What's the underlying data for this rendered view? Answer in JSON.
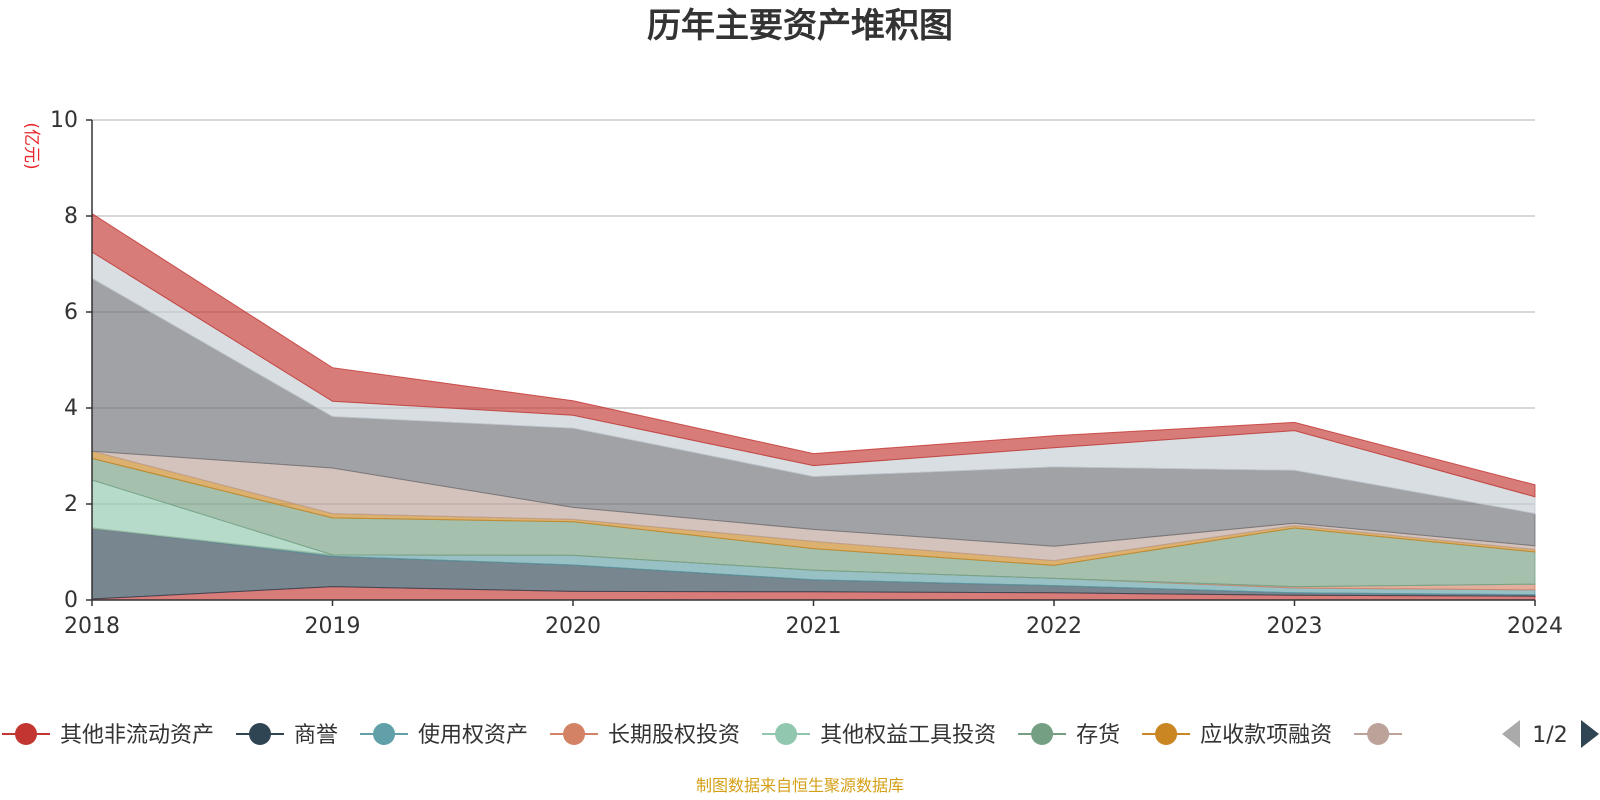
{
  "chart_data": {
    "type": "area",
    "stacked": true,
    "title": "历年主要资产堆积图",
    "unit_label": "(亿元)",
    "x": [
      "2018",
      "2019",
      "2020",
      "2021",
      "2022",
      "2023",
      "2024"
    ],
    "ylim": [
      0,
      10
    ],
    "yticks": [
      0,
      2,
      4,
      6,
      8,
      10
    ],
    "grid": true,
    "series": [
      {
        "name": "其他非流动资产",
        "color": "#c23531",
        "values": [
          0.02,
          0.28,
          0.18,
          0.17,
          0.15,
          0.1,
          0.08
        ],
        "in_legend": true
      },
      {
        "name": "商誉",
        "color": "#2f4554",
        "values": [
          1.48,
          0.63,
          0.55,
          0.25,
          0.15,
          0.05,
          0.03
        ],
        "in_legend": true
      },
      {
        "name": "使用权资产",
        "color": "#61a0a8",
        "values": [
          0.0,
          0.03,
          0.2,
          0.2,
          0.15,
          0.1,
          0.1
        ],
        "in_legend": true
      },
      {
        "name": "长期股权投资",
        "color": "#d48265",
        "values": [
          0.0,
          0.0,
          0.0,
          0.0,
          0.0,
          0.03,
          0.12
        ],
        "in_legend": true
      },
      {
        "name": "其他权益工具投资",
        "color": "#91c7ae",
        "values": [
          1.0,
          0.0,
          0.0,
          0.0,
          0.0,
          0.0,
          0.0
        ],
        "in_legend": true
      },
      {
        "name": "存货",
        "color": "#749f83",
        "values": [
          0.45,
          0.77,
          0.7,
          0.45,
          0.27,
          1.22,
          0.67
        ],
        "in_legend": true
      },
      {
        "name": "应收款项融资",
        "color": "#ca8622",
        "values": [
          0.15,
          0.09,
          0.05,
          0.15,
          0.1,
          0.05,
          0.05
        ],
        "in_legend": true
      },
      {
        "name": "",
        "color": "#bda29a",
        "values": [
          0.0,
          0.95,
          0.25,
          0.25,
          0.3,
          0.05,
          0.08
        ],
        "in_legend": true
      },
      {
        "name": "",
        "color": "#6e7074",
        "values": [
          3.6,
          1.07,
          1.65,
          1.1,
          1.65,
          1.1,
          0.67
        ],
        "in_legend": false
      },
      {
        "name": "",
        "color": "#c4ccd3",
        "values": [
          0.55,
          0.32,
          0.27,
          0.23,
          0.4,
          0.83,
          0.35
        ],
        "in_legend": false
      },
      {
        "name": "",
        "color": "#c23531",
        "values": [
          0.8,
          0.7,
          0.3,
          0.25,
          0.25,
          0.17,
          0.25
        ],
        "in_legend": false
      }
    ],
    "legend": {
      "page": "1/2",
      "placement": "bottom"
    }
  },
  "footer": {
    "source": "制图数据来自恒生聚源数据库"
  }
}
